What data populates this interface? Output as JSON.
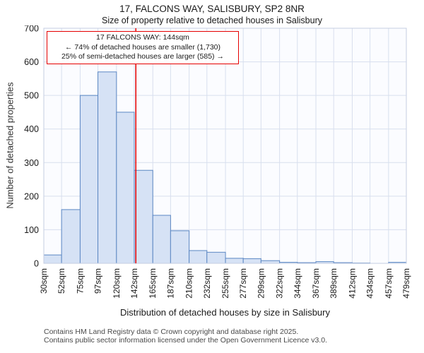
{
  "title": "17, FALCONS WAY, SALISBURY, SP2 8NR",
  "subtitle": "Size of property relative to detached houses in Salisbury",
  "annotation": {
    "line1": "17 FALCONS WAY: 144sqm",
    "line2": "← 74% of detached houses are smaller (1,730)",
    "line3": "25% of semi-detached houses are larger (585) →"
  },
  "footer": {
    "line1": "Contains HM Land Registry data © Crown copyright and database right 2025.",
    "line2": "Contains public sector information licensed under the Open Government Licence v3.0."
  },
  "chart_data": {
    "type": "bar",
    "title": "17, FALCONS WAY, SALISBURY, SP2 8NR — Size of property relative to detached houses in Salisbury",
    "xlabel": "Distribution of detached houses by size in Salisbury",
    "ylabel": "Number of detached properties",
    "bin_edges_sqm": [
      30,
      52,
      75,
      97,
      120,
      142,
      165,
      187,
      210,
      232,
      255,
      277,
      299,
      322,
      344,
      367,
      389,
      412,
      434,
      457,
      479
    ],
    "bin_labels": [
      "30sqm",
      "52sqm",
      "75sqm",
      "97sqm",
      "120sqm",
      "142sqm",
      "165sqm",
      "187sqm",
      "210sqm",
      "232sqm",
      "255sqm",
      "277sqm",
      "299sqm",
      "322sqm",
      "344sqm",
      "367sqm",
      "389sqm",
      "412sqm",
      "434sqm",
      "457sqm",
      "479sqm"
    ],
    "values": [
      25,
      160,
      500,
      570,
      450,
      277,
      143,
      97,
      38,
      33,
      15,
      14,
      8,
      3,
      2,
      5,
      2,
      1,
      0,
      3
    ],
    "ylim": [
      0,
      700
    ],
    "yticks": [
      0,
      100,
      200,
      300,
      400,
      500,
      600,
      700
    ],
    "grid": true,
    "legend": "none",
    "marker": {
      "value": 144,
      "label": "17 FALCONS WAY: 144sqm"
    },
    "colors": {
      "bar_fill": "#d6e2f5",
      "bar_stroke": "#5b87c3",
      "grid": "#d8dfee",
      "plot_border": "#c5cee2",
      "plot_bg": "#fbfcff",
      "marker": "#e60000"
    }
  }
}
